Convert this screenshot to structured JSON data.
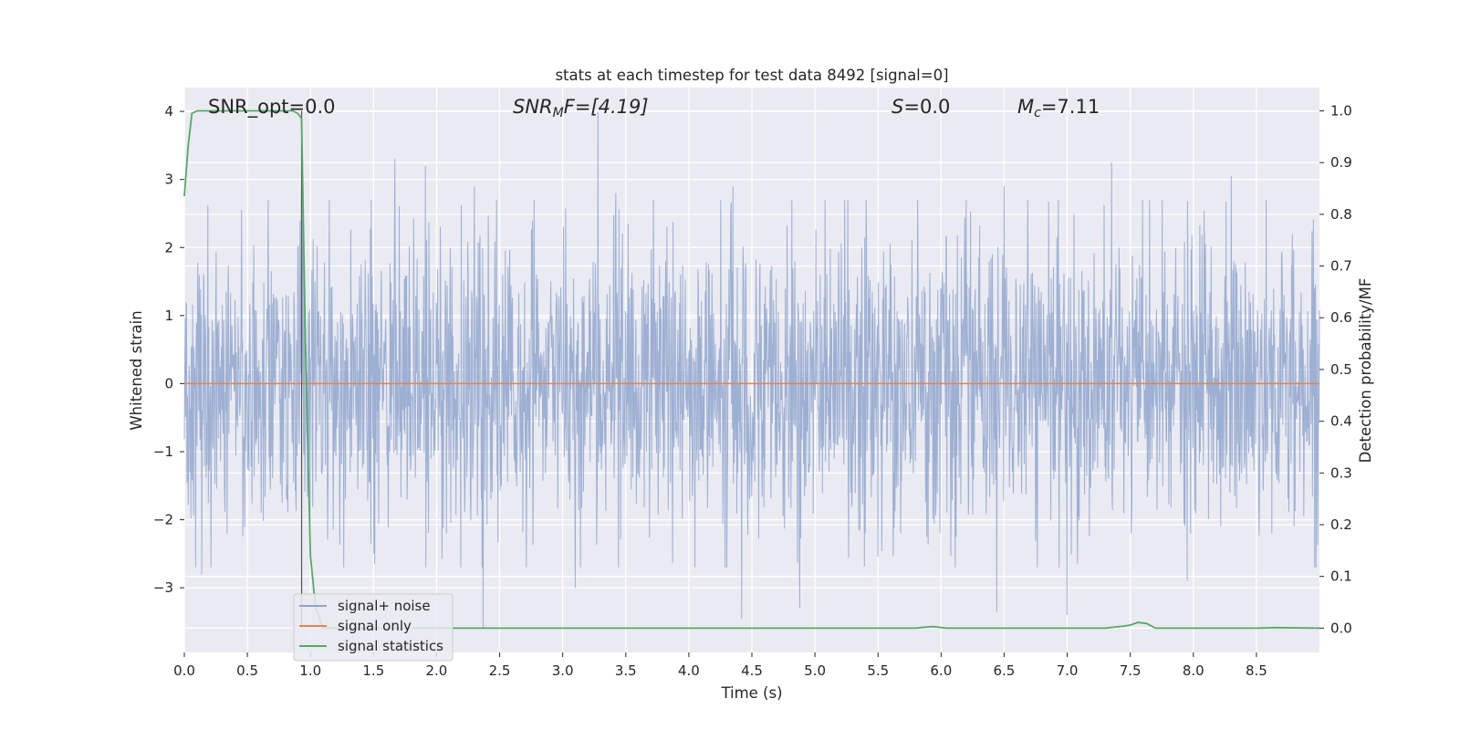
{
  "chart_data": {
    "type": "line",
    "title": "stats at each timestep for test data 8492 [signal=0]",
    "xlabel": "Time (s)",
    "ylabel": "Whitened strain",
    "ylabel_right": "Detection probability/MF",
    "xlim": [
      0,
      9
    ],
    "ylim": [
      -3.95,
      4.35
    ],
    "ylim_right": [
      -0.047,
      1.045
    ],
    "x_ticks": [
      "0.0",
      "0.5",
      "1.0",
      "1.5",
      "2.0",
      "2.5",
      "3.0",
      "3.5",
      "4.0",
      "4.5",
      "5.0",
      "5.5",
      "6.0",
      "6.5",
      "7.0",
      "7.5",
      "8.0",
      "8.5"
    ],
    "y_ticks": [
      "4",
      "3",
      "2",
      "1",
      "0",
      "−1",
      "−2",
      "−3"
    ],
    "y_tick_values": [
      4,
      3,
      2,
      1,
      0,
      -1,
      -2,
      -3
    ],
    "y_right_ticks": [
      "1.0",
      "0.9",
      "0.8",
      "0.7",
      "0.6",
      "0.5",
      "0.4",
      "0.3",
      "0.2",
      "0.1",
      "0.0"
    ],
    "y_right_tick_values": [
      1.0,
      0.9,
      0.8,
      0.7,
      0.6,
      0.5,
      0.4,
      0.3,
      0.2,
      0.1,
      0.0
    ],
    "grid": true,
    "legend_position": "lower-left",
    "annotations": {
      "snr_opt": "SNR_opt=0.0",
      "snr_mf_main": "SNR",
      "snr_mf_sub": "M",
      "snr_mf_tail": "F=[4.19]",
      "s_main": "S",
      "s_tail": "=0.0",
      "mc_main": "M",
      "mc_sub": "c",
      "mc_tail": "=7.11"
    },
    "vertical_marker_x": 0.93,
    "series": [
      {
        "name": "signal+ noise",
        "axis": "left",
        "color": "#8fa4cc",
        "description_points": "dense noise, approx Gaussian, amplitude about ±2.5, peaks to 4.0 near t=3.28 and -3.6 near t=2.37",
        "peaks": [
          {
            "x": 0.14,
            "y": -2.8
          },
          {
            "x": 0.94,
            "y": 2.4
          },
          {
            "x": 1.67,
            "y": 3.3
          },
          {
            "x": 1.91,
            "y": 3.2
          },
          {
            "x": 2.37,
            "y": -3.6
          },
          {
            "x": 2.3,
            "y": 2.9
          },
          {
            "x": 3.1,
            "y": -3.0
          },
          {
            "x": 3.28,
            "y": 4.0
          },
          {
            "x": 3.42,
            "y": 2.8
          },
          {
            "x": 4.42,
            "y": -3.45
          },
          {
            "x": 4.35,
            "y": 2.9
          },
          {
            "x": 4.88,
            "y": -3.3
          },
          {
            "x": 6.44,
            "y": -3.35
          },
          {
            "x": 6.5,
            "y": 2.9
          },
          {
            "x": 7.0,
            "y": -3.4
          },
          {
            "x": 7.35,
            "y": 3.25
          },
          {
            "x": 7.95,
            "y": -2.9
          },
          {
            "x": 8.3,
            "y": 3.05
          }
        ]
      },
      {
        "name": "signal only",
        "axis": "left",
        "color": "#dd8452",
        "x": [
          0,
          9
        ],
        "y": [
          0,
          0
        ]
      },
      {
        "name": "signal statistics",
        "axis": "right",
        "color": "#55a868",
        "x": [
          0.0,
          0.03,
          0.06,
          0.1,
          0.2,
          0.3,
          0.4,
          0.5,
          0.6,
          0.7,
          0.8,
          0.86,
          0.9,
          0.93,
          0.96,
          1.0,
          1.04,
          1.1,
          2.0,
          3.0,
          4.0,
          5.0,
          5.8,
          5.88,
          5.94,
          6.04,
          6.5,
          7.0,
          7.3,
          7.45,
          7.5,
          7.56,
          7.63,
          7.7,
          8.0,
          8.5,
          8.65,
          9.0
        ],
        "y": [
          0.835,
          0.93,
          0.995,
          1.0,
          1.0,
          1.0,
          1.0,
          1.0,
          1.0,
          1.0,
          1.0,
          1.0,
          0.995,
          0.985,
          0.55,
          0.14,
          0.04,
          0.0,
          0.0,
          0.0,
          0.0,
          0.0,
          0.0,
          0.002,
          0.003,
          0.0,
          0.0,
          0.0,
          0.0,
          0.004,
          0.006,
          0.011,
          0.009,
          0.0,
          0.0,
          0.0,
          0.001,
          0.0
        ]
      }
    ]
  }
}
